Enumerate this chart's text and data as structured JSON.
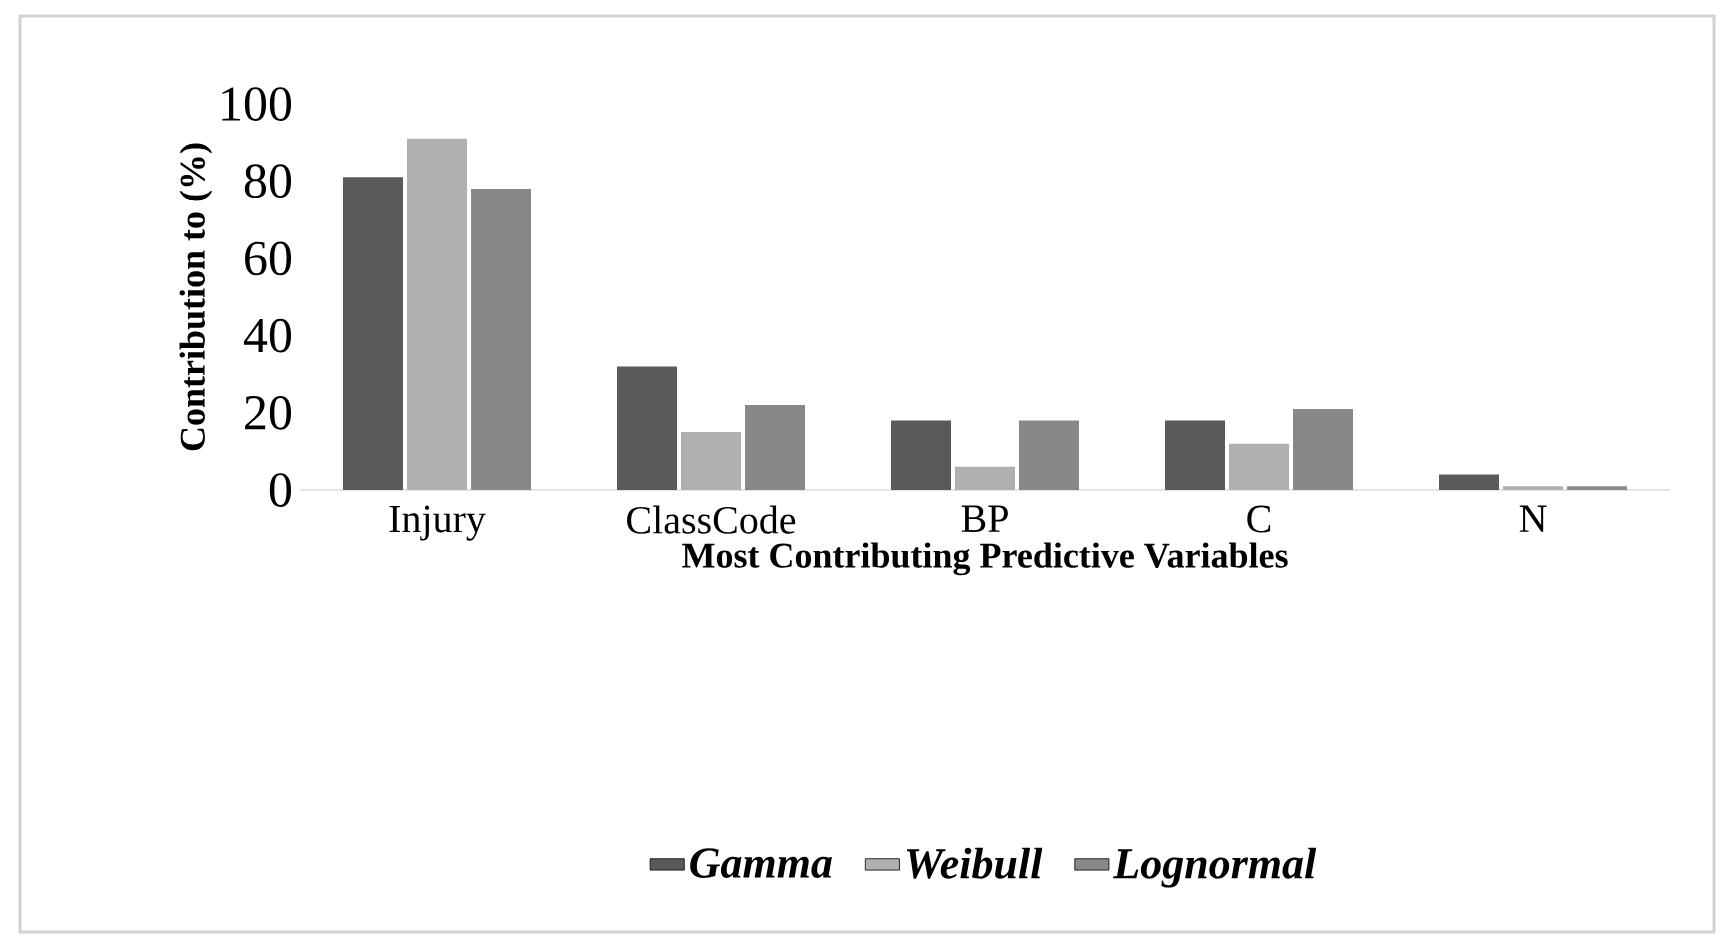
{
  "chart_data": {
    "type": "bar",
    "categories": [
      "Injury",
      "ClassCode",
      "BP",
      "C",
      "N"
    ],
    "series": [
      {
        "name": "Gamma",
        "color": "#5a5a5a",
        "values": [
          81,
          32,
          18,
          18,
          4
        ]
      },
      {
        "name": "Weibull",
        "color": "#b0b0b0",
        "values": [
          91,
          15,
          6,
          12,
          1
        ]
      },
      {
        "name": "Lognormal",
        "color": "#888888",
        "values": [
          78,
          22,
          18,
          21,
          1
        ]
      }
    ],
    "xlabel": "Most  Contributing  Predictive Variables",
    "ylabel": "Contribution to (%)",
    "ylim": [
      0,
      100
    ],
    "yticks": [
      0,
      20,
      40,
      60,
      80,
      100
    ],
    "legend": "bottom"
  }
}
